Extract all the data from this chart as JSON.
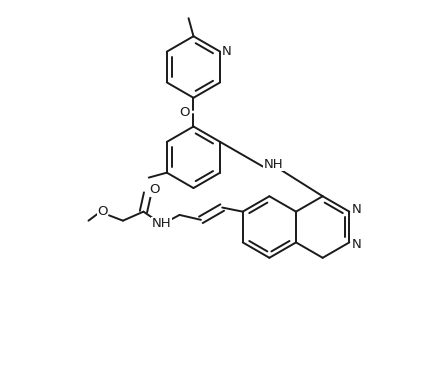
{
  "background_color": "#ffffff",
  "line_color": "#1a1a1a",
  "line_width": 1.4,
  "font_size": 9.5,
  "figsize": [
    4.28,
    3.72
  ],
  "dpi": 100,
  "xlim": [
    0,
    10
  ],
  "ylim": [
    0,
    9
  ]
}
